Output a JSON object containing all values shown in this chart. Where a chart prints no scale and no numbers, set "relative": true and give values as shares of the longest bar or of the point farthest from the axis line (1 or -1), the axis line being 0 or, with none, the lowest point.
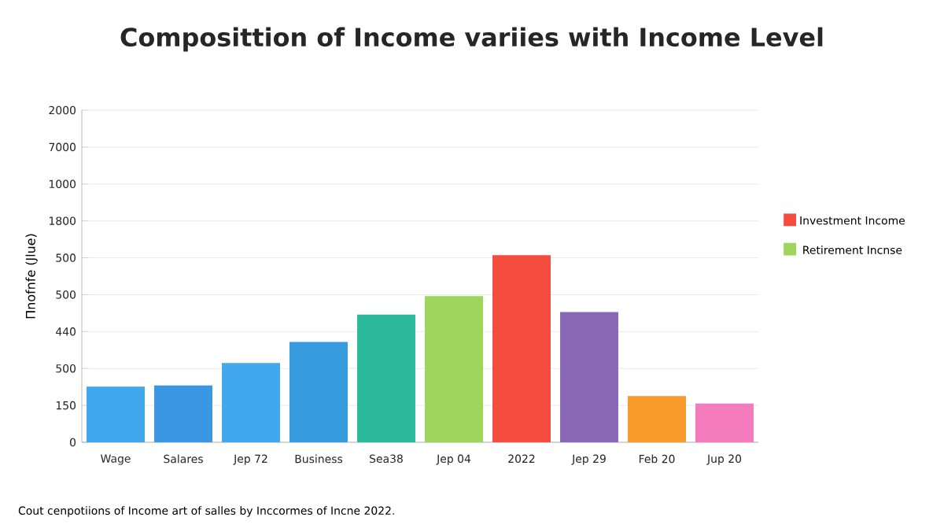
{
  "chart_data": {
    "type": "bar",
    "title": "Composittion of Income variies with Income Level",
    "ylabel": "Πnofnfe (Jlue)",
    "annotations": [
      "Cout cenpotiions of Income art of salles by Inccormes of Incne 2022.",
      "0",
      "150",
      "500",
      "440",
      "500",
      "500",
      "1800",
      "1000",
      "7000",
      "2000"
    ],
    "categories": [
      "Wage",
      "Salares",
      "Jep 72",
      "Business",
      "Sea38",
      "Jep 04",
      "2022",
      "Jep 29",
      "Feb 20",
      "Jup 20"
    ],
    "relative": true,
    "series": [
      {
        "colors": [
          "#41a8ee",
          "#3b97e3",
          "#41a8ee",
          "#379be0",
          "#2bbb9c",
          null,
          null,
          "#8a68b8",
          "#f99a2c",
          "#f47bbd"
        ],
        "values": [
          0.298,
          0.304,
          0.424,
          0.536,
          0.682,
          null,
          null,
          0.696,
          0.247,
          0.207
        ]
      },
      {
        "name": "Investment Income",
        "color": "#f44c3f",
        "values": [
          null,
          null,
          null,
          null,
          null,
          null,
          1,
          null,
          null,
          null
        ]
      },
      {
        "name": "Retirement Incnse",
        "color": "#9ed55c",
        "values": [
          null,
          null,
          null,
          null,
          null,
          0.781,
          null,
          null,
          null,
          null
        ]
      }
    ],
    "grid": "y",
    "legend": "right"
  }
}
